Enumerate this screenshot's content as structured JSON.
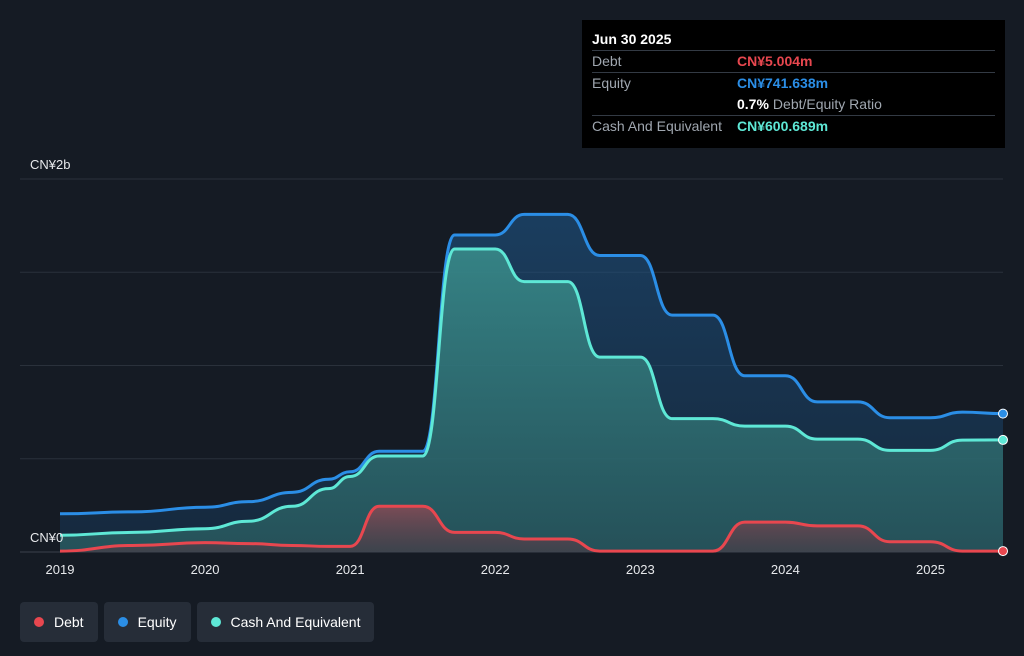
{
  "tooltip": {
    "date": "Jun 30 2025",
    "rows": [
      {
        "label": "Debt",
        "value": "CN¥5.004m",
        "color": "#e8474f"
      },
      {
        "label": "Equity",
        "value": "CN¥741.638m",
        "color": "#2b8ee6"
      },
      {
        "label": "",
        "value": "0.7%",
        "suffix": "Debt/Equity Ratio",
        "color": "#ffffff"
      },
      {
        "label": "Cash And Equivalent",
        "value": "CN¥600.689m",
        "color": "#5ee8d6"
      }
    ]
  },
  "legend": [
    {
      "label": "Debt",
      "color": "#e8474f"
    },
    {
      "label": "Equity",
      "color": "#2b8ee6"
    },
    {
      "label": "Cash And Equivalent",
      "color": "#5ee8d6"
    }
  ],
  "chart_data": {
    "type": "area",
    "unit": "CN¥m",
    "ylim": [
      0,
      2000
    ],
    "xlim": [
      2019.0,
      2025.5
    ],
    "y_tick_labels": [
      {
        "value": 2000,
        "label": "CN¥2b"
      },
      {
        "value": 0,
        "label": "CN¥0"
      }
    ],
    "x_ticks": [
      2019,
      2020,
      2021,
      2022,
      2023,
      2024,
      2025
    ],
    "x_tick_labels": [
      "2019",
      "2020",
      "2021",
      "2022",
      "2023",
      "2024",
      "2025"
    ],
    "grid": true,
    "series": [
      {
        "name": "Equity",
        "color": "#2b8ee6",
        "x": [
          2019.0,
          2019.5,
          2020.0,
          2020.3,
          2020.6,
          2020.85,
          2021.0,
          2021.2,
          2021.5,
          2021.72,
          2022.0,
          2022.2,
          2022.5,
          2022.72,
          2023.0,
          2023.22,
          2023.5,
          2023.72,
          2024.0,
          2024.22,
          2024.5,
          2024.72,
          2025.0,
          2025.22,
          2025.5
        ],
        "values": [
          205,
          215,
          240,
          270,
          320,
          390,
          430,
          540,
          540,
          1700,
          1700,
          1810,
          1810,
          1590,
          1590,
          1270,
          1270,
          945,
          945,
          805,
          805,
          720,
          720,
          750,
          742
        ]
      },
      {
        "name": "Cash And Equivalent",
        "color": "#5ee8d6",
        "x": [
          2019.0,
          2019.5,
          2020.0,
          2020.3,
          2020.6,
          2020.85,
          2021.0,
          2021.2,
          2021.5,
          2021.72,
          2022.0,
          2022.2,
          2022.5,
          2022.72,
          2023.0,
          2023.22,
          2023.5,
          2023.72,
          2024.0,
          2024.22,
          2024.5,
          2024.72,
          2025.0,
          2025.22,
          2025.5
        ],
        "values": [
          90,
          105,
          125,
          165,
          245,
          340,
          405,
          515,
          515,
          1625,
          1625,
          1450,
          1450,
          1045,
          1045,
          715,
          715,
          675,
          675,
          605,
          605,
          545,
          545,
          600,
          601
        ]
      },
      {
        "name": "Debt",
        "color": "#e8474f",
        "x": [
          2019.0,
          2019.5,
          2020.0,
          2020.3,
          2020.6,
          2020.85,
          2021.0,
          2021.2,
          2021.5,
          2021.72,
          2022.0,
          2022.2,
          2022.5,
          2022.72,
          2023.0,
          2023.22,
          2023.5,
          2023.72,
          2024.0,
          2024.22,
          2024.5,
          2024.72,
          2025.0,
          2025.22,
          2025.5
        ],
        "values": [
          5,
          35,
          50,
          45,
          35,
          30,
          30,
          245,
          245,
          105,
          105,
          70,
          70,
          5,
          5,
          5,
          5,
          160,
          160,
          140,
          140,
          55,
          55,
          5,
          5
        ]
      }
    ]
  }
}
